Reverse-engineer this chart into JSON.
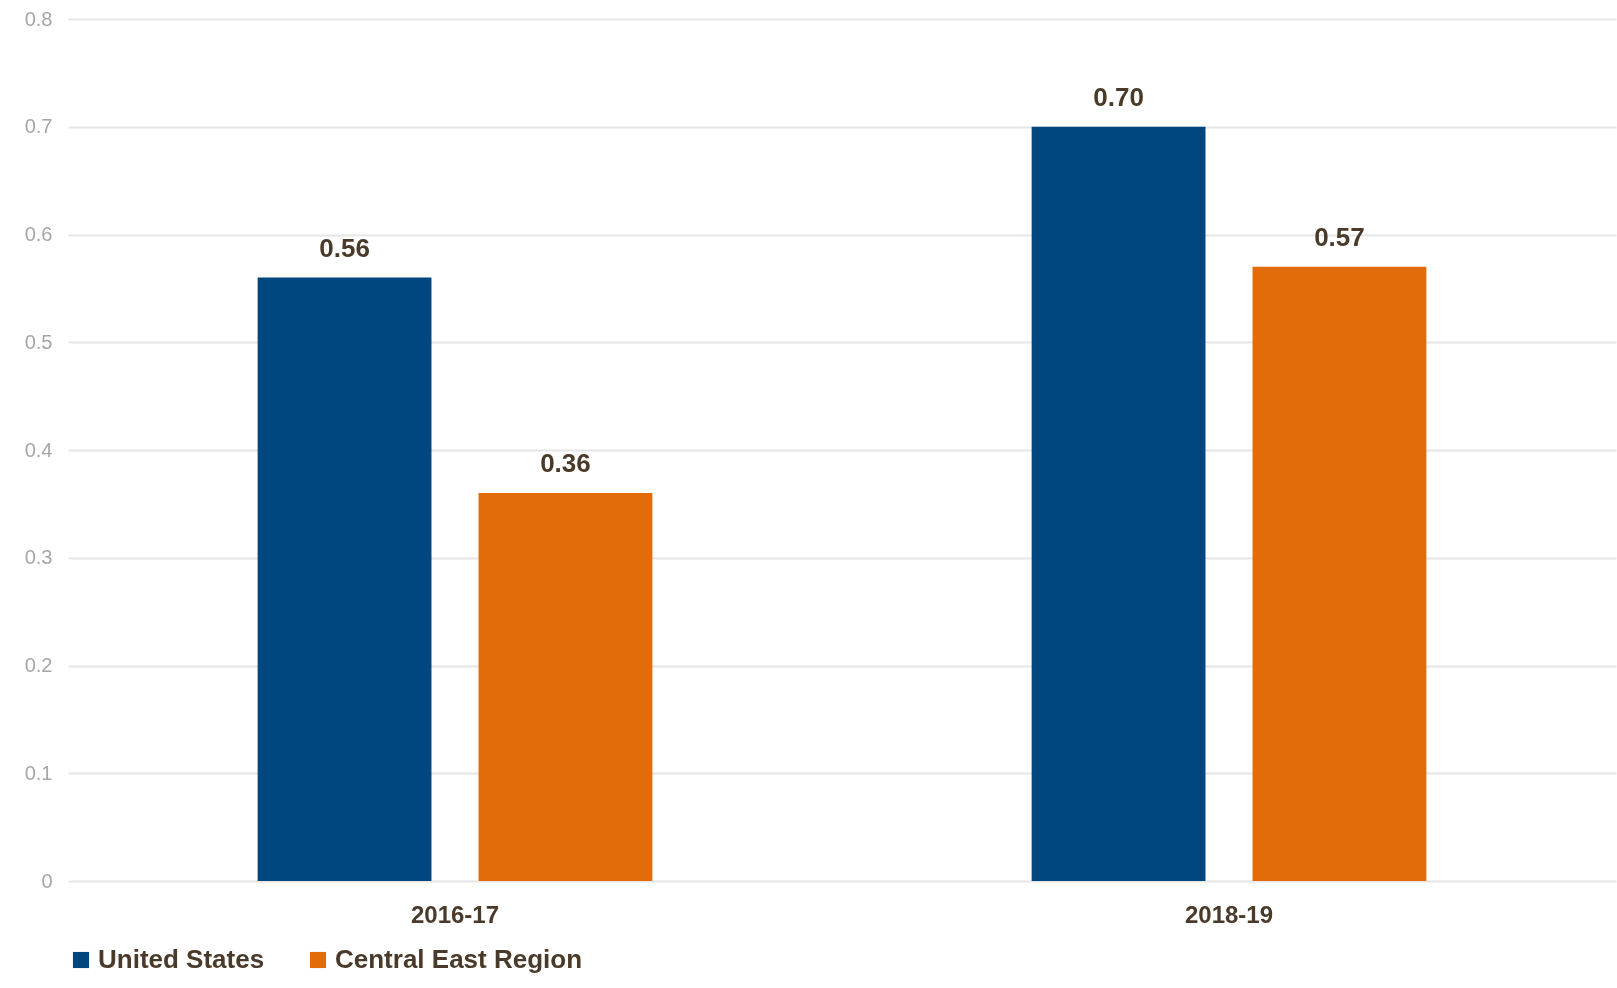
{
  "chart_data": {
    "type": "bar",
    "categories": [
      "2016-17",
      "2018-19"
    ],
    "series": [
      {
        "name": "United States",
        "color": "#00467f",
        "values": [
          0.56,
          0.7
        ],
        "value_labels": [
          "0.56",
          "0.70"
        ]
      },
      {
        "name": "Central East Region",
        "color": "#e36c0a",
        "values": [
          0.36,
          0.57
        ],
        "value_labels": [
          "0.36",
          "0.57"
        ]
      }
    ],
    "ylim": [
      0,
      0.8
    ],
    "yticks": [
      0,
      0.1,
      0.2,
      0.3,
      0.4,
      0.5,
      0.6,
      0.7,
      0.8
    ],
    "grid": "y",
    "legend": "bottom"
  }
}
